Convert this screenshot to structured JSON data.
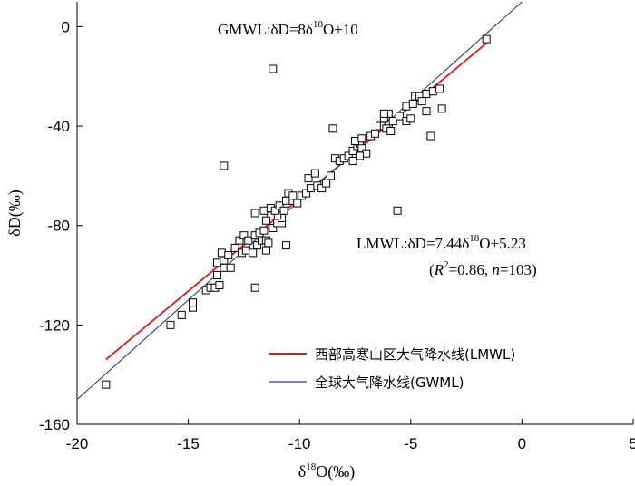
{
  "chart_data": {
    "type": "scatter",
    "xlabel": {
      "prefix": "δ",
      "sup": "18",
      "suffix": "O(‰)"
    },
    "ylabel": "δD(‰)",
    "xlim": [
      -20,
      5
    ],
    "ylim": [
      -160,
      10
    ],
    "xticks": [
      -20,
      -15,
      -10,
      -5,
      0,
      5
    ],
    "yticks": [
      -160,
      -120,
      -80,
      -40,
      0
    ],
    "xtick_labels": [
      "-20",
      "-15",
      "-10",
      "-5",
      "0",
      "5"
    ],
    "ytick_labels": [
      "-160",
      "-120",
      "-80",
      "-40",
      "0"
    ],
    "annotations": {
      "gmwl": {
        "prefix": "GMWL:δD=8δ",
        "sup": "18",
        "suffix": "O+10"
      },
      "lmwl": {
        "prefix": "LMWL:δD=7.44δ",
        "sup": "18",
        "suffix": "O+5.23"
      },
      "stats": {
        "open": "(",
        "r": "R",
        "r_sup": "2",
        "mid": "=0.86, ",
        "n": "n",
        "close": "=103)"
      }
    },
    "legend": {
      "position": "bottom-right",
      "items": [
        {
          "label": "西部高寒山区大气降水线(LMWL)",
          "color": "#e31a1c"
        },
        {
          "label": "全球大气降水线(GWML)",
          "color": "#2b3b9f"
        }
      ]
    },
    "series": [
      {
        "name": "西部高寒山区大气降水线(LMWL)",
        "kind": "line",
        "slope": 7.44,
        "intercept": 5.23,
        "x_range": [
          -18.7,
          -1.6
        ],
        "color": "#e31a1c"
      },
      {
        "name": "全球大气降水线(GWML)",
        "kind": "line",
        "slope": 8,
        "intercept": 10,
        "x_range": [
          -20,
          0.8
        ],
        "color": "#2b3b9f"
      },
      {
        "kind": "scatter",
        "points": [
          [
            -18.7,
            -144
          ],
          [
            -15.8,
            -120
          ],
          [
            -15.3,
            -116
          ],
          [
            -14.8,
            -113
          ],
          [
            -14.8,
            -111
          ],
          [
            -14.2,
            -106
          ],
          [
            -14.0,
            -105
          ],
          [
            -13.8,
            -105
          ],
          [
            -13.6,
            -104
          ],
          [
            -12.0,
            -105
          ],
          [
            -13.7,
            -100
          ],
          [
            -13.4,
            -97
          ],
          [
            -13.7,
            -95
          ],
          [
            -13.4,
            -94
          ],
          [
            -13.1,
            -97
          ],
          [
            -13.5,
            -91
          ],
          [
            -13.2,
            -92
          ],
          [
            -12.9,
            -89
          ],
          [
            -12.6,
            -91
          ],
          [
            -12.4,
            -90
          ],
          [
            -12.1,
            -91
          ],
          [
            -11.9,
            -88
          ],
          [
            -11.7,
            -86
          ],
          [
            -11.5,
            -90
          ],
          [
            -11.5,
            -86
          ],
          [
            -12.7,
            -86
          ],
          [
            -12.5,
            -84
          ],
          [
            -12.3,
            -86
          ],
          [
            -12.0,
            -84
          ],
          [
            -11.8,
            -83
          ],
          [
            -11.6,
            -82
          ],
          [
            -11.4,
            -87
          ],
          [
            -11.2,
            -81
          ],
          [
            -11.0,
            -79
          ],
          [
            -10.8,
            -79
          ],
          [
            -10.8,
            -77
          ],
          [
            -11.0,
            -76
          ],
          [
            -11.3,
            -76
          ],
          [
            -11.5,
            -78
          ],
          [
            -11.6,
            -74
          ],
          [
            -11.3,
            -73
          ],
          [
            -11.1,
            -74
          ],
          [
            -10.9,
            -72
          ],
          [
            -10.7,
            -74
          ],
          [
            -10.6,
            -70
          ],
          [
            -10.3,
            -70
          ],
          [
            -10.1,
            -71
          ],
          [
            -9.9,
            -68
          ],
          [
            -9.7,
            -67
          ],
          [
            -9.5,
            -65
          ],
          [
            -9.2,
            -64
          ],
          [
            -9.0,
            -65
          ],
          [
            -8.8,
            -63
          ],
          [
            -8.6,
            -60
          ],
          [
            -9.6,
            -61
          ],
          [
            -9.3,
            -59
          ],
          [
            -10.5,
            -67
          ],
          [
            -10.3,
            -68
          ],
          [
            -10.6,
            -88
          ],
          [
            -12.0,
            -75
          ],
          [
            -13.4,
            -56
          ],
          [
            -11.2,
            -17
          ],
          [
            -8.5,
            -41
          ],
          [
            -8.4,
            -53
          ],
          [
            -8.2,
            -54
          ],
          [
            -8.0,
            -53
          ],
          [
            -7.8,
            -52
          ],
          [
            -7.6,
            -50
          ],
          [
            -7.4,
            -48
          ],
          [
            -7.3,
            -47
          ],
          [
            -7.2,
            -49
          ],
          [
            -7.0,
            -51
          ],
          [
            -7.6,
            -54
          ],
          [
            -7.3,
            -52
          ],
          [
            -7.5,
            -46
          ],
          [
            -7.2,
            -45
          ],
          [
            -6.8,
            -44
          ],
          [
            -6.6,
            -43
          ],
          [
            -6.4,
            -40
          ],
          [
            -6.2,
            -40
          ],
          [
            -6.0,
            -39
          ],
          [
            -6.2,
            -37
          ],
          [
            -6.0,
            -35
          ],
          [
            -5.8,
            -38
          ],
          [
            -5.5,
            -36
          ],
          [
            -5.2,
            -38
          ],
          [
            -5.0,
            -37
          ],
          [
            -5.2,
            -32
          ],
          [
            -4.9,
            -31
          ],
          [
            -4.8,
            -28
          ],
          [
            -4.6,
            -28
          ],
          [
            -4.5,
            -30
          ],
          [
            -4.3,
            -27
          ],
          [
            -4.0,
            -26
          ],
          [
            -3.7,
            -25
          ],
          [
            -3.6,
            -33
          ],
          [
            -4.3,
            -34
          ],
          [
            -4.1,
            -44
          ],
          [
            -5.6,
            -74
          ],
          [
            -6.1,
            -41
          ],
          [
            -5.9,
            -42
          ],
          [
            -6.2,
            -35
          ],
          [
            -1.6,
            -5
          ]
        ]
      }
    ]
  }
}
